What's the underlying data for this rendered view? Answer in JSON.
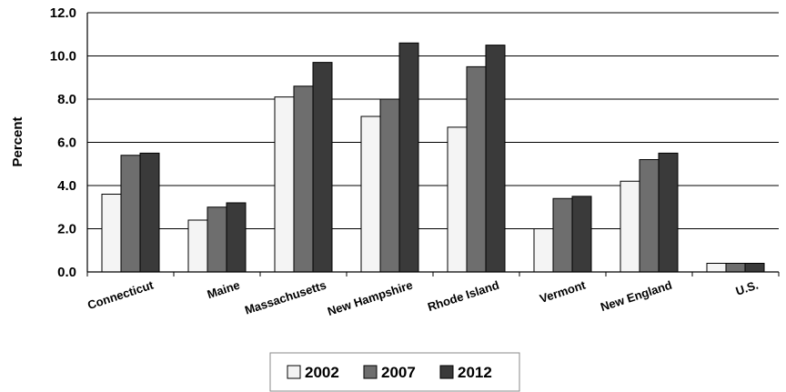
{
  "chart_data": {
    "type": "bar",
    "ylabel": "Percent",
    "xlabel": "",
    "ylim": [
      0,
      12
    ],
    "y_ticks": [
      "0.0",
      "2.0",
      "4.0",
      "6.0",
      "8.0",
      "10.0",
      "12.0"
    ],
    "grid": true,
    "legend_position": "bottom",
    "categories": [
      "Connecticut",
      "Maine",
      "Massachusetts",
      "New Hampshire",
      "Rhode Island",
      "Vermont",
      "New England",
      "U.S."
    ],
    "series": [
      {
        "name": "2002",
        "color": "#f4f4f4",
        "values": [
          3.6,
          2.4,
          8.1,
          7.2,
          6.7,
          2.0,
          4.2,
          0.4
        ]
      },
      {
        "name": "2007",
        "color": "#6e6e6e",
        "values": [
          5.4,
          3.0,
          8.6,
          8.0,
          9.5,
          3.4,
          5.2,
          0.4
        ]
      },
      {
        "name": "2012",
        "color": "#3a3a3a",
        "values": [
          5.5,
          3.2,
          9.7,
          10.6,
          10.5,
          3.5,
          5.5,
          0.4
        ]
      }
    ]
  }
}
